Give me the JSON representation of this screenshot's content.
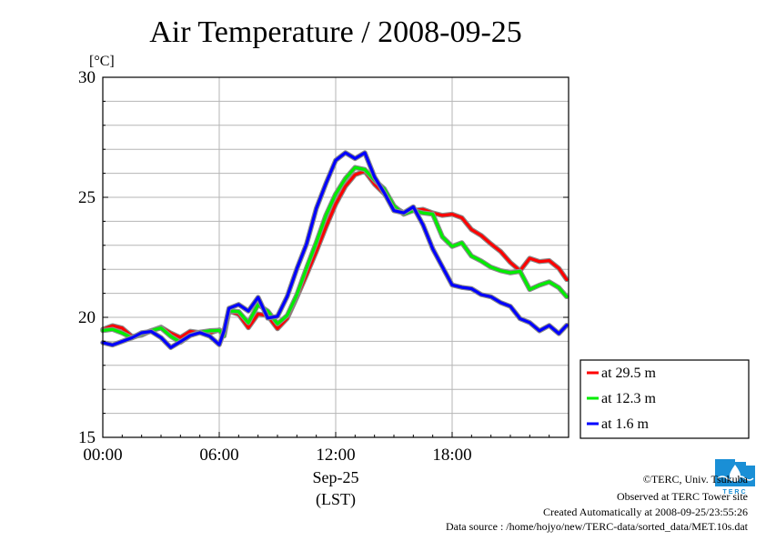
{
  "chart_data": {
    "type": "line",
    "title": "Air Temperature / 2008-09-25",
    "y_unit": "[°C]",
    "xlabel_line1": "Sep-25",
    "xlabel_line2": "(LST)",
    "x_range_hours": [
      0,
      24
    ],
    "ylim": [
      15,
      30
    ],
    "y_ticks": [
      {
        "value": 30,
        "label": "30"
      },
      {
        "value": 25,
        "label": "25"
      },
      {
        "value": 20,
        "label": "20"
      },
      {
        "value": 15,
        "label": "15"
      }
    ],
    "x_ticks": [
      {
        "value": 0,
        "label": "00:00"
      },
      {
        "value": 6,
        "label": "06:00"
      },
      {
        "value": 12,
        "label": "12:00"
      },
      {
        "value": 18,
        "label": "18:00"
      }
    ],
    "grid": true,
    "legend_position": "right-bottom-outside",
    "series": [
      {
        "name": "at 29.5 m",
        "color": "#ff0000",
        "x": [
          0,
          0.5,
          1,
          1.5,
          2,
          2.5,
          3,
          3.5,
          4,
          4.5,
          5,
          5.5,
          6,
          6.25,
          6.5,
          7,
          7.5,
          8,
          8.5,
          9,
          9.5,
          10,
          10.5,
          11,
          11.5,
          12,
          12.5,
          13,
          13.5,
          14,
          14.5,
          15,
          15.5,
          16,
          16.5,
          17,
          17.5,
          18,
          18.5,
          19,
          19.5,
          20,
          20.5,
          21,
          21.5,
          22,
          22.5,
          23,
          23.5,
          23.9
        ],
        "y": [
          19.5,
          19.6,
          19.5,
          19.2,
          19.3,
          19.5,
          19.6,
          19.3,
          19.1,
          19.4,
          19.4,
          19.4,
          19.5,
          19.3,
          20.2,
          20.1,
          19.6,
          20.2,
          20.1,
          19.5,
          19.9,
          20.8,
          21.8,
          22.8,
          23.8,
          24.7,
          25.4,
          25.9,
          26.1,
          25.6,
          25.2,
          24.6,
          24.3,
          24.4,
          24.5,
          24.4,
          24.3,
          24.3,
          24.1,
          23.6,
          23.4,
          23.1,
          22.8,
          22.3,
          21.9,
          22.4,
          22.3,
          22.4,
          22.1,
          21.6
        ]
      },
      {
        "name": "at 12.3 m",
        "color": "#00ee00",
        "x": [
          0,
          0.5,
          1,
          1.5,
          2,
          2.5,
          3,
          3.5,
          4,
          4.5,
          5,
          5.5,
          6,
          6.25,
          6.5,
          7,
          7.5,
          8,
          8.5,
          9,
          9.5,
          10,
          10.5,
          11,
          11.5,
          12,
          12.5,
          13,
          13.5,
          14,
          14.5,
          15,
          15.5,
          16,
          16.5,
          17,
          17.5,
          18,
          18.5,
          19,
          19.5,
          20,
          20.5,
          21,
          21.5,
          22,
          22.5,
          23,
          23.5,
          23.9
        ],
        "y": [
          19.4,
          19.5,
          19.4,
          19.2,
          19.3,
          19.4,
          19.5,
          19.2,
          19.0,
          19.3,
          19.4,
          19.4,
          19.4,
          19.2,
          20.3,
          20.3,
          19.8,
          20.5,
          20.2,
          19.7,
          20.1,
          21.0,
          22.1,
          23.1,
          24.2,
          25.1,
          25.8,
          26.3,
          26.2,
          25.7,
          25.3,
          24.6,
          24.3,
          24.5,
          24.4,
          24.3,
          23.3,
          22.9,
          23.1,
          22.6,
          22.4,
          22.1,
          21.9,
          21.8,
          21.9,
          21.2,
          21.4,
          21.5,
          21.2,
          20.8
        ]
      },
      {
        "name": "at 1.6 m",
        "color": "#0000ff",
        "x": [
          0,
          0.5,
          1,
          1.5,
          2,
          2.5,
          3,
          3.5,
          4,
          4.5,
          5,
          5.5,
          6,
          6.25,
          6.5,
          7,
          7.5,
          8,
          8.5,
          9,
          9.5,
          10,
          10.5,
          11,
          11.5,
          12,
          12.5,
          13,
          13.5,
          14,
          14.5,
          15,
          15.5,
          16,
          16.5,
          17,
          17.5,
          18,
          18.5,
          19,
          19.5,
          20,
          20.5,
          21,
          21.5,
          22,
          22.5,
          23,
          23.5,
          23.9
        ],
        "y": [
          19.0,
          18.9,
          19.0,
          19.1,
          19.3,
          19.4,
          19.2,
          18.8,
          19.0,
          19.2,
          19.3,
          19.2,
          18.9,
          19.5,
          20.4,
          20.5,
          20.2,
          20.8,
          20.0,
          20.1,
          20.9,
          22.0,
          23.0,
          24.5,
          25.6,
          26.6,
          26.9,
          26.6,
          26.8,
          25.8,
          25.2,
          24.5,
          24.4,
          24.6,
          23.8,
          22.8,
          22.1,
          21.4,
          21.3,
          21.2,
          20.9,
          20.8,
          20.6,
          20.5,
          20.0,
          19.8,
          19.4,
          19.6,
          19.3,
          19.7
        ]
      }
    ]
  },
  "footer": {
    "logo_text": "TERC",
    "copyright": "©TERC, Univ. Tsukuba",
    "observed": "Observed at TERC Tower site",
    "created": "Created Automatically at 2008-09-25/23:55:26",
    "source": "Data source : /home/hojyo/new/TERC-data/sorted_data/MET.10s.dat"
  },
  "colors": {
    "logo_blue": "#1a8fd6"
  }
}
